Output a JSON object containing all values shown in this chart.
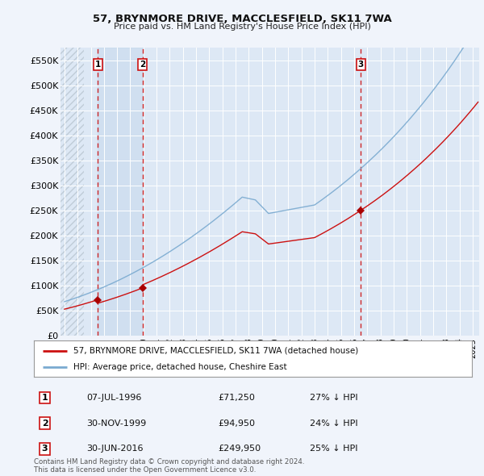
{
  "title": "57, BRYNMORE DRIVE, MACCLESFIELD, SK11 7WA",
  "subtitle": "Price paid vs. HM Land Registry's House Price Index (HPI)",
  "ylim": [
    0,
    575000
  ],
  "yticks": [
    0,
    50000,
    100000,
    150000,
    200000,
    250000,
    300000,
    350000,
    400000,
    450000,
    500000,
    550000
  ],
  "ytick_labels": [
    "£0",
    "£50K",
    "£100K",
    "£150K",
    "£200K",
    "£250K",
    "£300K",
    "£350K",
    "£400K",
    "£450K",
    "£500K",
    "£550K"
  ],
  "background_color": "#f0f4fb",
  "plot_bg_color": "#dde8f5",
  "grid_color": "#ffffff",
  "hpi_line_color": "#7aaad0",
  "price_line_color": "#cc1111",
  "sale_marker_color": "#aa0000",
  "vline_color": "#cc1111",
  "label_border_color": "#cc1111",
  "shade_color": "#c8ddf0",
  "hatch_color": "#c0ccd8",
  "legend_label_price": "57, BRYNMORE DRIVE, MACCLESFIELD, SK11 7WA (detached house)",
  "legend_label_hpi": "HPI: Average price, detached house, Cheshire East",
  "sales": [
    {
      "date_num": 1996.52,
      "price": 71250,
      "label": "1"
    },
    {
      "date_num": 1999.92,
      "price": 94950,
      "label": "2"
    },
    {
      "date_num": 2016.5,
      "price": 249950,
      "label": "3"
    }
  ],
  "sale_table": [
    {
      "num": "1",
      "date": "07-JUL-1996",
      "price": "£71,250",
      "hpi": "27% ↓ HPI"
    },
    {
      "num": "2",
      "date": "30-NOV-1999",
      "price": "£94,950",
      "hpi": "24% ↓ HPI"
    },
    {
      "num": "3",
      "date": "30-JUN-2016",
      "price": "£249,950",
      "hpi": "25% ↓ HPI"
    }
  ],
  "footer": "Contains HM Land Registry data © Crown copyright and database right 2024.\nThis data is licensed under the Open Government Licence v3.0.",
  "xmin": 1993.7,
  "xmax": 2025.5
}
